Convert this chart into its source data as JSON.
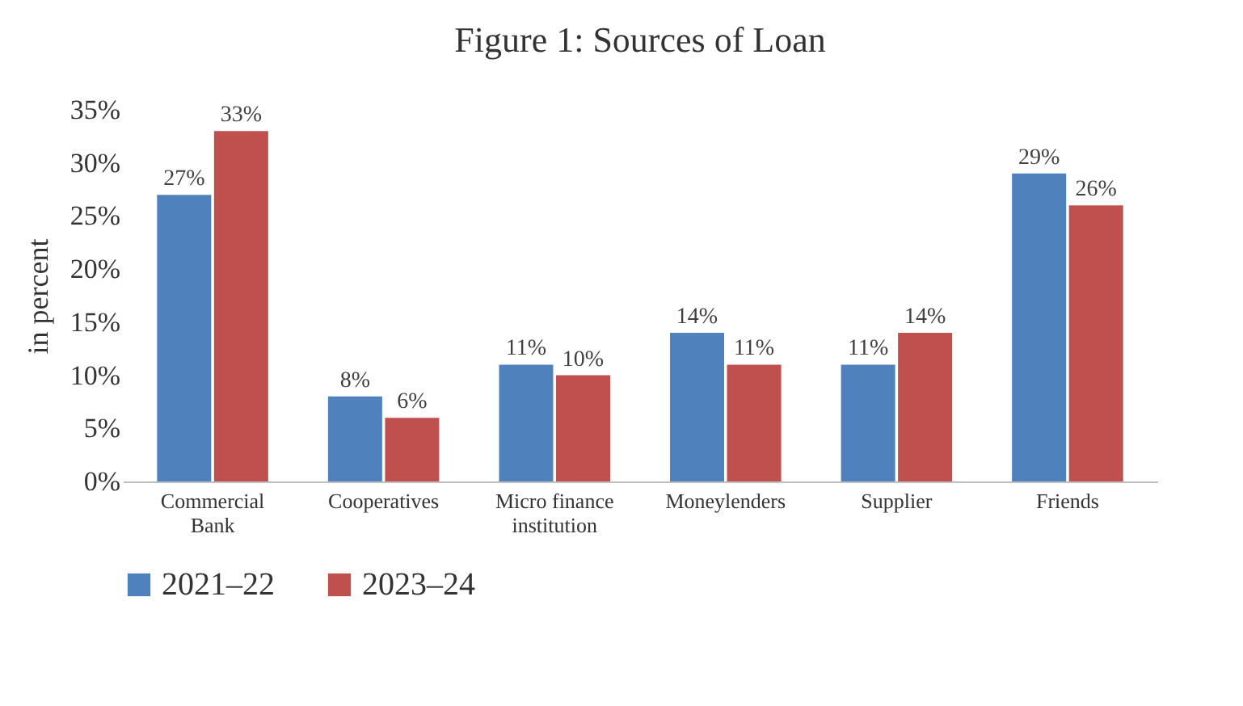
{
  "chart_data": {
    "type": "bar",
    "title": "Figure 1: Sources of Loan",
    "ylabel": "in percent",
    "categories": [
      "Commercial Bank",
      "Cooperatives",
      "Micro finance institution",
      "Moneylenders",
      "Supplier",
      "Friends"
    ],
    "series": [
      {
        "name": "2021–22",
        "color": "#4f81bd",
        "values": [
          27,
          8,
          11,
          14,
          11,
          29
        ],
        "value_labels": [
          "27%",
          "8%",
          "11%",
          "14%",
          "11%",
          "29%"
        ]
      },
      {
        "name": "2023–24",
        "color": "#c0504d",
        "values": [
          33,
          6,
          10,
          11,
          14,
          26
        ],
        "value_labels": [
          "33%",
          "6%",
          "10%",
          "11%",
          "14%",
          "26%"
        ]
      }
    ],
    "ylim": [
      0,
      35
    ],
    "yticks": [
      {
        "value": 0,
        "label": "0%"
      },
      {
        "value": 5,
        "label": "5%"
      },
      {
        "value": 10,
        "label": "10%"
      },
      {
        "value": 15,
        "label": "15%"
      },
      {
        "value": 20,
        "label": "20%"
      },
      {
        "value": 25,
        "label": "25%"
      },
      {
        "value": 30,
        "label": "30%"
      },
      {
        "value": 35,
        "label": "35%"
      }
    ],
    "grid": false,
    "legend": "bottom"
  }
}
